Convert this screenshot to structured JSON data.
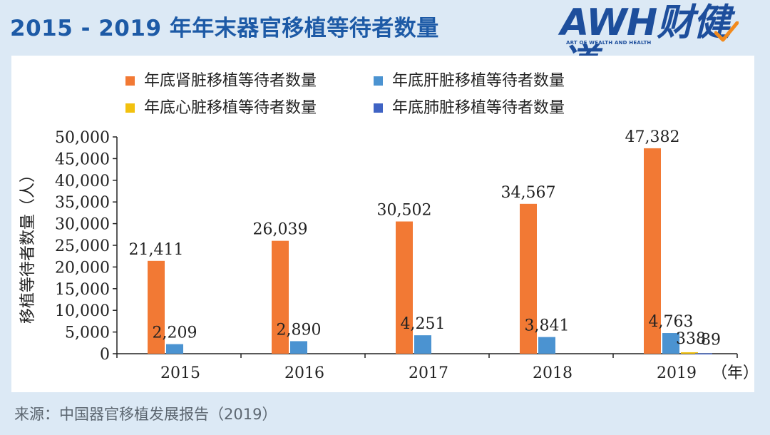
{
  "header": {
    "title": "2015 - 2019 年年末器官移植等待者数量"
  },
  "logo": {
    "main": "AWH财健道",
    "sub": "ART OF WEALTH AND HEALTH"
  },
  "footer": {
    "source": "来源：中国器官移植发展报告（2019）"
  },
  "colors": {
    "header_blue": "#1d5aa6",
    "kidney": "#f27934",
    "liver": "#4b93d1",
    "heart": "#f2c10f",
    "lung": "#3f63c4"
  },
  "chart_data": {
    "type": "bar",
    "categories": [
      "2015",
      "2016",
      "2017",
      "2018",
      "2019"
    ],
    "x_unit": "（年）",
    "ylabel": "移植等待者数量（人）",
    "ylim": [
      0,
      50000
    ],
    "yticks": [
      "0",
      "5,000",
      "10,000",
      "15,000",
      "20,000",
      "25,000",
      "30,000",
      "35,000",
      "40,000",
      "45,000",
      "50,000"
    ],
    "legend_position": "top",
    "series": [
      {
        "name": "年底肾脏移植等待者数量",
        "color": "#f27934",
        "values": [
          21411,
          26039,
          30502,
          34567,
          47382
        ],
        "labels": [
          "21,411",
          "26,039",
          "30,502",
          "34,567",
          "47,382"
        ]
      },
      {
        "name": "年底肝脏移植等待者数量",
        "color": "#4b93d1",
        "values": [
          2209,
          2890,
          4251,
          3841,
          4763
        ],
        "labels": [
          "2,209",
          "2,890",
          "4,251",
          "3,841",
          "4,763"
        ]
      },
      {
        "name": "年底心脏移植等待者数量",
        "color": "#f2c10f",
        "values": [
          null,
          null,
          null,
          null,
          338
        ],
        "labels": [
          "",
          "",
          "",
          "",
          "338"
        ]
      },
      {
        "name": "年底肺脏移植等待者数量",
        "color": "#3f63c4",
        "values": [
          null,
          null,
          null,
          null,
          89
        ],
        "labels": [
          "",
          "",
          "",
          "",
          "89"
        ]
      }
    ]
  }
}
